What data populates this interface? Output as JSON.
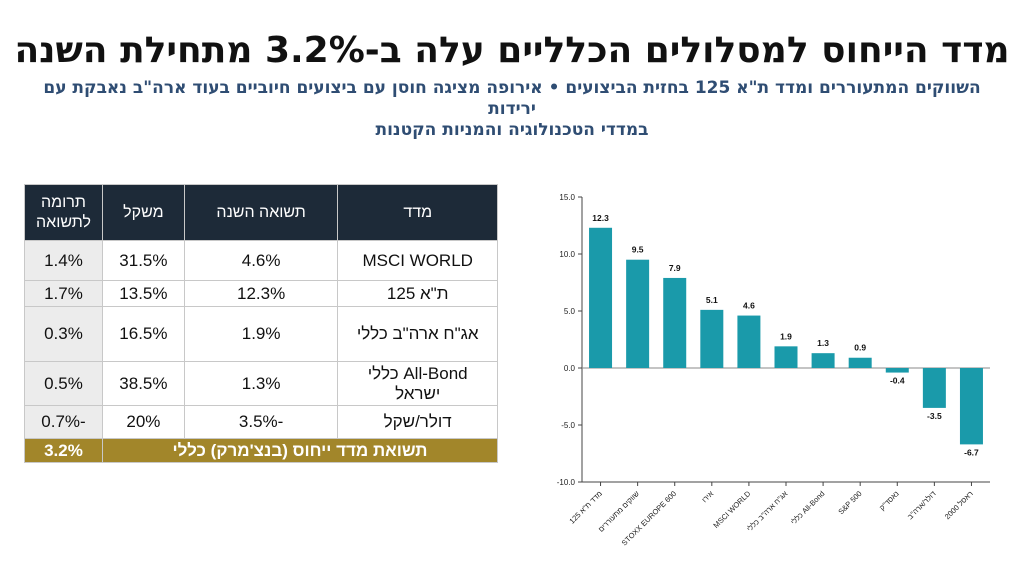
{
  "header": {
    "title": "מדד הייחוס למסלולים הכלליים עלה ב-3.2% מתחילת השנה",
    "subtitle_line1": "השווקים המתעוררים ומדד ת\"א 125 בחזית הביצועים • אירופה מציגה חוסן עם ביצועים חיוביים בעוד ארה\"ב נאבקת עם ירידות",
    "subtitle_line2": "במדדי הטכנולוגיה והמניות הקטנות"
  },
  "table": {
    "headers": [
      "מדד",
      "תשואה השנה",
      "משקל",
      "תרומה לתשואה"
    ],
    "rows": [
      {
        "index": "MSCI WORLD",
        "ret": "4.6%",
        "weight": "31.5%",
        "contrib": "1.4%"
      },
      {
        "index": "ת\"א 125",
        "ret": "12.3%",
        "weight": "13.5%",
        "contrib": "1.7%"
      },
      {
        "index": "אג\"ח ארה\"ב כללי",
        "ret": "1.9%",
        "weight": "16.5%",
        "contrib": "0.3%"
      },
      {
        "index": "All-Bond כללי ישראל",
        "ret": "1.3%",
        "weight": "38.5%",
        "contrib": "0.5%"
      },
      {
        "index": "דולר/שקל",
        "ret": "-3.5%",
        "weight": "20%",
        "contrib": "-0.7%"
      }
    ],
    "total_label": "תשואת מדד ייחוס (בנצ'מרק) כללי",
    "total_value": "3.2%",
    "colors": {
      "header_bg": "#1d2a38",
      "total_bg": "#a2862a"
    }
  },
  "chart_data": {
    "type": "bar",
    "categories": [
      "מדד ת\"א 125",
      "שווקים מתעוררים",
      "STOXX EUROPE 600",
      "אירו",
      "MSCI WORLD",
      "אג\"ח ארה\"ב כללי",
      "כללי All-Bond",
      "S&P 500",
      "נאסד\"ק",
      "דולר/ארה\"ב",
      "ראסל 2000"
    ],
    "values": [
      12.3,
      9.5,
      7.9,
      5.1,
      4.6,
      1.9,
      1.3,
      0.9,
      -0.4,
      -3.5,
      -6.7
    ],
    "value_labels": [
      "12.3",
      "9.5",
      "7.9",
      "5.1",
      "4.6",
      "1.9",
      "1.3",
      "0.9",
      "-0.4",
      "-3.5",
      "-6.7"
    ],
    "yticks": [
      15.0,
      10.0,
      5.0,
      0.0,
      -5.0,
      -10.0
    ],
    "ytick_labels": [
      "15.0",
      "10.0",
      "5.0",
      "0.0",
      "-5.0",
      "-10.0"
    ],
    "ylim": [
      -10,
      15
    ],
    "grid": false,
    "color": "#1a9aaa",
    "title": "",
    "xlabel": "",
    "ylabel": ""
  }
}
